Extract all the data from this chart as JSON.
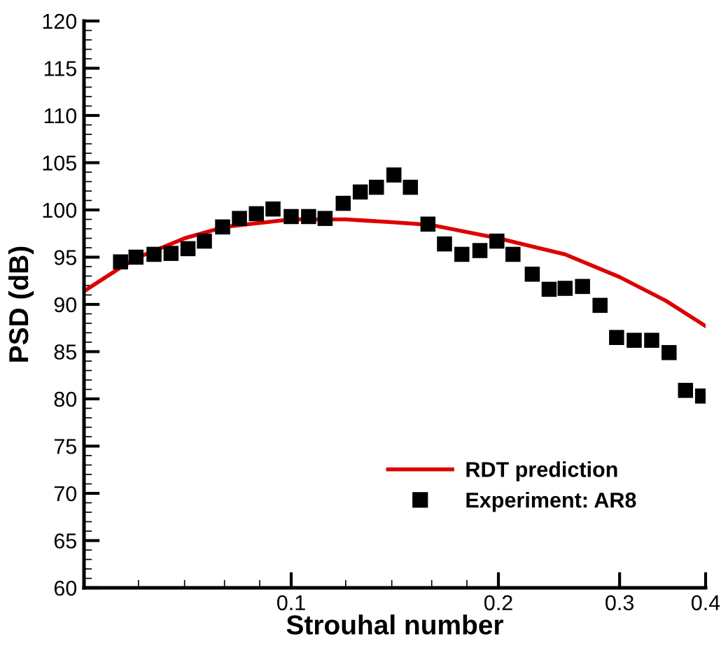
{
  "chart_data": {
    "type": "scatter",
    "xlabel": "Strouhal number",
    "ylabel": "PSD (dB)",
    "log": "x",
    "xlim": [
      0.05,
      0.4
    ],
    "xticks": [
      0.1,
      0.2,
      0.3,
      0.4
    ],
    "ylim": [
      60,
      120
    ],
    "yticks": [
      60,
      65,
      70,
      75,
      80,
      85,
      90,
      95,
      100,
      105,
      110,
      115,
      120
    ],
    "grid": false,
    "legend": "bottom right",
    "series": [
      {
        "name": "RDT prediction",
        "type": "line",
        "color": "#dd0000",
        "marker": "none",
        "line_style": "solid",
        "x": [
          0.05,
          0.0565,
          0.06,
          0.07,
          0.08,
          0.1,
          0.12,
          0.14,
          0.16,
          0.2,
          0.25,
          0.3,
          0.35,
          0.4
        ],
        "values": [
          91.4,
          93.9,
          95.0,
          97.0,
          98.2,
          99.0,
          99.0,
          98.7,
          98.4,
          97.0,
          95.3,
          92.9,
          90.4,
          87.7
        ]
      },
      {
        "name": "Experiment: AR8",
        "color": "#000000",
        "marker": "square",
        "x": [
          0.0565,
          0.0595,
          0.0632,
          0.0669,
          0.0708,
          0.0748,
          0.0795,
          0.0841,
          0.089,
          0.0941,
          0.1,
          0.106,
          0.112,
          0.119,
          0.126,
          0.133,
          0.141,
          0.149,
          0.158,
          0.167,
          0.177,
          0.188,
          0.199,
          0.21,
          0.224,
          0.237,
          0.25,
          0.265,
          0.281,
          0.297,
          0.315,
          0.334,
          0.354,
          0.374,
          0.396
        ],
        "values": [
          94.5,
          95.0,
          95.3,
          95.4,
          95.9,
          96.7,
          98.2,
          99.1,
          99.6,
          100.1,
          99.3,
          99.3,
          99.1,
          100.7,
          101.9,
          102.4,
          103.7,
          102.4,
          98.5,
          96.4,
          95.3,
          95.7,
          96.7,
          95.3,
          93.2,
          91.6,
          91.7,
          91.9,
          89.9,
          86.5,
          86.2,
          86.2,
          84.9,
          80.9,
          80.3
        ]
      }
    ]
  }
}
